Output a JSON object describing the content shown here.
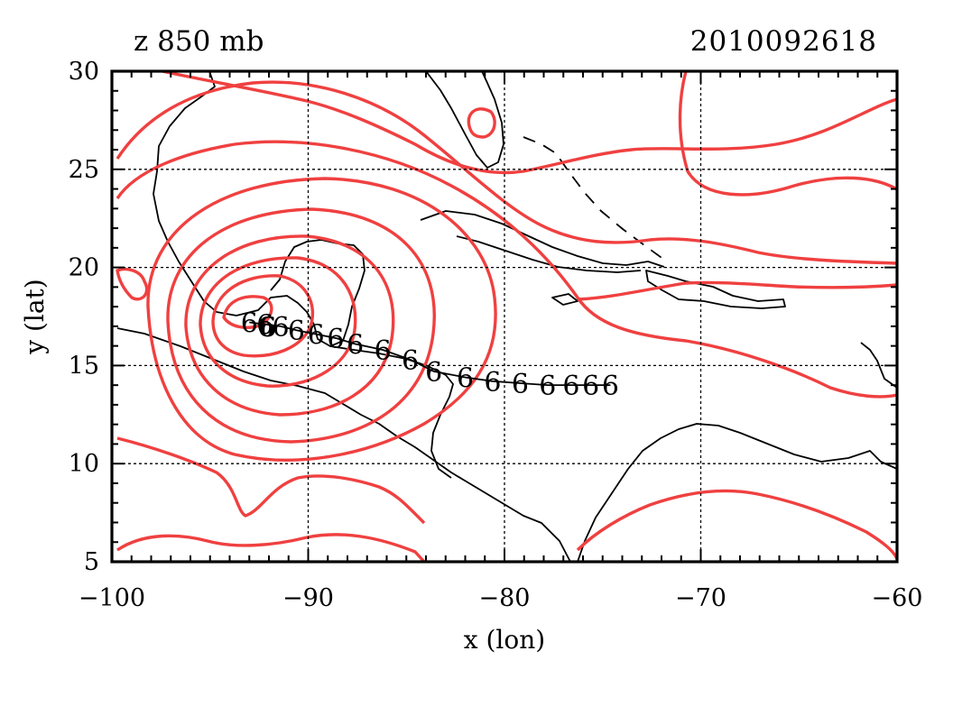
{
  "title_left": "z 850 mb",
  "title_right": "2010092618",
  "x_axis": {
    "label": "x (lon)",
    "min": -100,
    "max": -60,
    "ticks": [
      -100,
      -90,
      -80,
      -70,
      -60
    ],
    "tick_labels": [
      "−100",
      "−90",
      "−80",
      "−70",
      "−60"
    ],
    "gridlines": [
      -90,
      -80,
      -70
    ]
  },
  "y_axis": {
    "label": "y (lat)",
    "min": 5,
    "max": 30,
    "ticks": [
      5,
      10,
      15,
      20,
      25,
      30
    ],
    "tick_labels": [
      "5",
      "10",
      "15",
      "20",
      "25",
      "30"
    ],
    "gridlines": [
      10,
      15,
      20,
      25
    ]
  },
  "colors": {
    "contour": "#f04040",
    "coast": "#000000",
    "track_symbol": "#000000",
    "current_symbol": "#1a1aff",
    "grid": "#000000"
  },
  "track": {
    "symbol_text": "6",
    "points": [
      [
        -74.6,
        14.0
      ],
      [
        -75.6,
        14.0
      ],
      [
        -76.6,
        14.0
      ],
      [
        -77.8,
        14.0
      ],
      [
        -79.2,
        14.1
      ],
      [
        -80.6,
        14.2
      ],
      [
        -82.0,
        14.4
      ],
      [
        -83.6,
        14.7
      ],
      [
        -84.8,
        15.3
      ],
      [
        -86.2,
        15.8
      ],
      [
        -87.6,
        16.1
      ],
      [
        -88.6,
        16.4
      ],
      [
        -89.6,
        16.6
      ],
      [
        -90.6,
        16.8
      ],
      [
        -91.4,
        17.0
      ],
      [
        -92.2,
        17.1
      ],
      [
        -93.0,
        17.2
      ]
    ],
    "current": [
      -92.1,
      17.0
    ]
  }
}
